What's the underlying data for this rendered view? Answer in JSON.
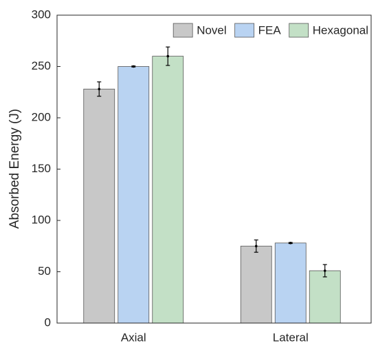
{
  "chart_data": {
    "type": "bar",
    "ylabel": "Absorbed Energy (J)",
    "categories": [
      "Axial",
      "Lateral"
    ],
    "series": [
      {
        "name": "Novel",
        "color": "#c8c8c8",
        "values": [
          228,
          75
        ],
        "errors": [
          7,
          6
        ]
      },
      {
        "name": "FEA",
        "color": "#b9d3f2",
        "values": [
          250,
          78
        ],
        "errors": [
          0.5,
          0.5
        ]
      },
      {
        "name": "Hexagonal",
        "color": "#c3e0c6",
        "values": [
          260,
          51
        ],
        "errors": [
          9,
          6
        ]
      }
    ],
    "ylim": [
      0,
      300
    ],
    "yticks": [
      0,
      50,
      100,
      150,
      200,
      250,
      300
    ],
    "grid": false,
    "legend_location": "top-right",
    "box": true
  }
}
